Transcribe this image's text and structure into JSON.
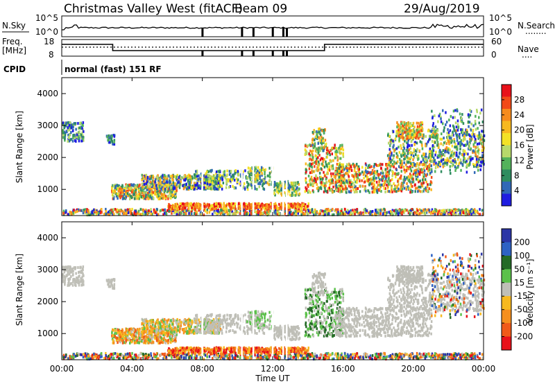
{
  "header": {
    "station": "Christmas Valley West (fitACF)",
    "beam": "Beam 09",
    "date": "29/Aug/2019"
  },
  "panels": {
    "nsky": {
      "label": "N.Sky",
      "left_ticks": [
        "10^5",
        "10^0"
      ],
      "right_ticks": [
        "10^5",
        "10^0"
      ],
      "right_label": "N.Search",
      "right_dots": "........"
    },
    "freq": {
      "label": "Freq.\n[MHz]",
      "left_ticks": [
        "18",
        "8"
      ],
      "right_ticks": [
        "60",
        "0"
      ],
      "right_label": "Nave",
      "right_dots": "...."
    },
    "cpid": {
      "label": "CPID",
      "value": "normal (fast) 151 RF"
    }
  },
  "chart_data": [
    {
      "type": "heatmap",
      "title": "",
      "ylabel": "Slant Range [km]",
      "xlabel": "Time UT",
      "ylim": [
        180,
        4500
      ],
      "yticks": [
        1000,
        2000,
        3000,
        4000
      ],
      "xticks": [
        "00:00",
        "04:00",
        "08:00",
        "12:00",
        "16:00",
        "20:00",
        "00:00"
      ],
      "colorbar": {
        "label": "Power [dB]",
        "ticks": [
          "28",
          "24",
          "20",
          "16",
          "12",
          "8",
          "4"
        ],
        "colors": [
          "#e8111a",
          "#f24a18",
          "#f68b1d",
          "#f7b81f",
          "#f3e126",
          "#b7d96b",
          "#53b25b",
          "#2e8c5f",
          "#3068b7",
          "#1f1de0"
        ]
      }
    },
    {
      "type": "heatmap",
      "title": "",
      "ylabel": "Slant Range [km]",
      "xlabel": "Time UT",
      "ylim": [
        180,
        4500
      ],
      "yticks": [
        1000,
        2000,
        3000,
        4000
      ],
      "xticks": [
        "00:00",
        "04:00",
        "08:00",
        "12:00",
        "16:00",
        "20:00",
        "00:00"
      ],
      "colorbar": {
        "label": "Velocity [m s⁻¹]",
        "ticks": [
          "200",
          "100",
          "50",
          "15",
          "-15",
          "-50",
          "-100",
          "-200"
        ],
        "colors": [
          "#2b35a6",
          "#2e62c4",
          "#246a26",
          "#5bc14a",
          "#bfbfb7",
          "#f7b91f",
          "#f58f1e",
          "#f05a19",
          "#e8111a"
        ]
      }
    }
  ]
}
